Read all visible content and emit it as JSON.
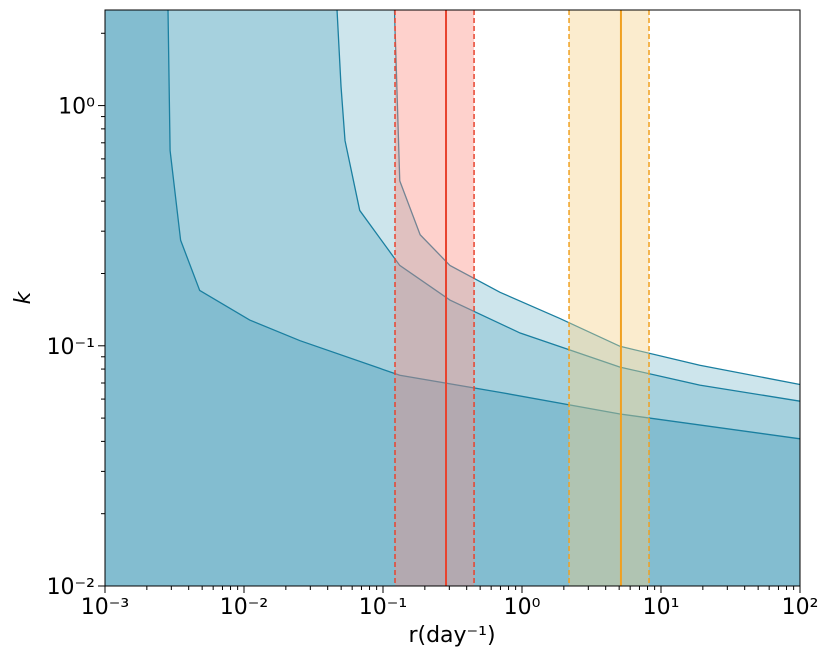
{
  "chart_data": {
    "type": "area",
    "x_label": "r(day⁻¹)",
    "y_label": "k",
    "x_log": true,
    "y_log": true,
    "xlim": [
      0.001,
      100
    ],
    "ylim": [
      0.01,
      2.5
    ],
    "xticks": [
      {
        "value": 0.001,
        "label": "10⁻³"
      },
      {
        "value": 0.01,
        "label": "10⁻²"
      },
      {
        "value": 0.1,
        "label": "10⁻¹"
      },
      {
        "value": 1,
        "label": "10⁰"
      },
      {
        "value": 10,
        "label": "10¹"
      },
      {
        "value": 100,
        "label": "10²"
      }
    ],
    "yticks": [
      {
        "value": 0.01,
        "label": "10⁻²"
      },
      {
        "value": 0.1,
        "label": "10⁻¹"
      },
      {
        "value": 1,
        "label": "10⁰"
      }
    ],
    "series": [
      {
        "color": "#cde5ec",
        "line_color": "#1a7fa0",
        "x": [
          0.121,
          0.132,
          0.185,
          0.303,
          0.695,
          1.87,
          5.07,
          19,
          100
        ],
        "values": [
          2.5,
          0.486,
          0.29,
          0.216,
          0.167,
          0.13,
          0.0995,
          0.083,
          0.069
        ]
      },
      {
        "color": "#a6d1de",
        "line_color": "#1a7fa0",
        "x": [
          0.0467,
          0.0499,
          0.0533,
          0.068,
          0.132,
          0.303,
          0.97,
          5.07,
          19,
          100
        ],
        "values": [
          2.5,
          1.2,
          0.715,
          0.366,
          0.216,
          0.155,
          0.113,
          0.0815,
          0.0686,
          0.0588
        ]
      },
      {
        "color": "#83bdd0",
        "line_color": "#1a7fa0",
        "x": [
          0.00284,
          0.00294,
          0.0035,
          0.0048,
          0.011,
          0.0253,
          0.132,
          0.695,
          5.07,
          100
        ],
        "values": [
          2.5,
          0.65,
          0.275,
          0.17,
          0.128,
          0.105,
          0.0754,
          0.064,
          0.052,
          0.041
        ]
      }
    ],
    "bands": [
      {
        "low": 0.122,
        "center": 0.284,
        "high": 0.452,
        "color": "#fd8d80",
        "line_color": "#e8432e"
      },
      {
        "low": 2.18,
        "center": 5.15,
        "high": 8.2,
        "color": "#f5cf85",
        "line_color": "#f0a020"
      }
    ]
  }
}
